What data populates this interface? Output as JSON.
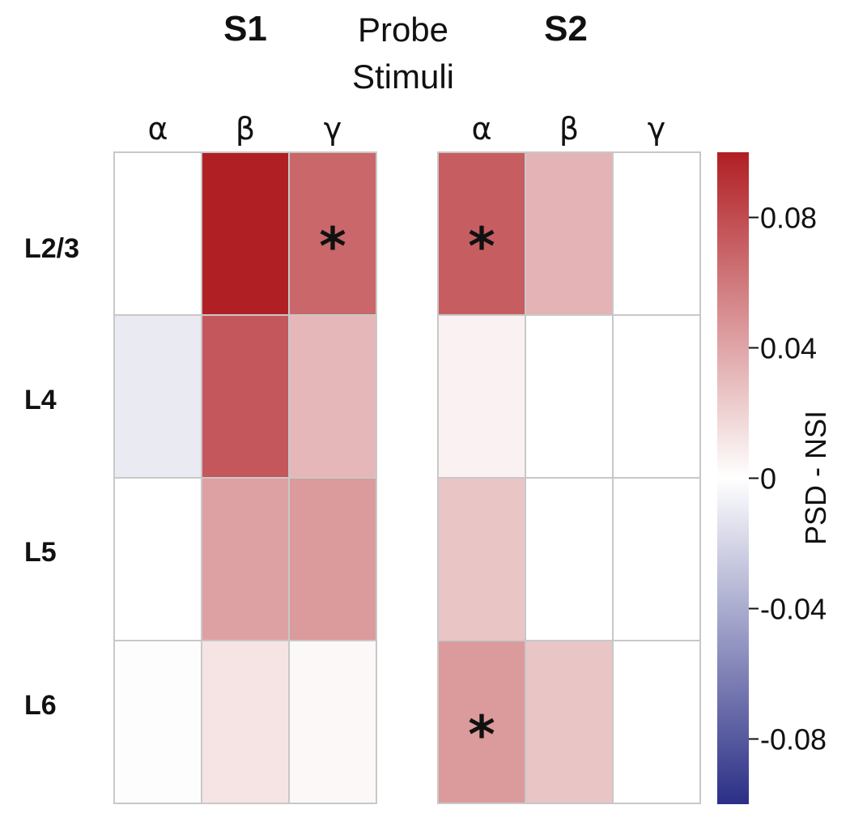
{
  "chart_data": {
    "type": "heatmap",
    "header": "Probe\nStimuli",
    "colorbar_label": "PSD - NSI",
    "row_labels": [
      "L2/3",
      "L4",
      "L5",
      "L6"
    ],
    "colorscale": {
      "min": -0.1,
      "max": 0.1,
      "low_color": "#2b2f86",
      "mid_color": "#ffffff",
      "high_color": "#b01f24"
    },
    "colorbar_ticks": [
      {
        "value": 0.08,
        "label": "0.08"
      },
      {
        "value": 0.04,
        "label": "0.04"
      },
      {
        "value": 0,
        "label": "0"
      },
      {
        "value": -0.04,
        "label": "-0.04"
      },
      {
        "value": -0.08,
        "label": "-0.08"
      }
    ],
    "panels": [
      {
        "title": "S1",
        "columns": [
          "α",
          "β",
          "γ"
        ],
        "values": [
          [
            0.0,
            0.1,
            0.068
          ],
          [
            -0.01,
            0.075,
            0.032
          ],
          [
            0.0,
            0.042,
            0.045
          ],
          [
            0.001,
            0.012,
            0.003
          ]
        ],
        "significant": [
          [
            false,
            false,
            true
          ],
          [
            false,
            false,
            false
          ],
          [
            false,
            false,
            false
          ],
          [
            false,
            false,
            false
          ]
        ]
      },
      {
        "title": "S2",
        "columns": [
          "α",
          "β",
          "γ"
        ],
        "values": [
          [
            0.072,
            0.034,
            0.0
          ],
          [
            0.006,
            0.0,
            0.0
          ],
          [
            0.026,
            0.0,
            0.0
          ],
          [
            0.045,
            0.026,
            0.0
          ]
        ],
        "significant": [
          [
            true,
            false,
            false
          ],
          [
            false,
            false,
            false
          ],
          [
            false,
            false,
            false
          ],
          [
            true,
            false,
            false
          ]
        ]
      }
    ],
    "marker": "*"
  }
}
